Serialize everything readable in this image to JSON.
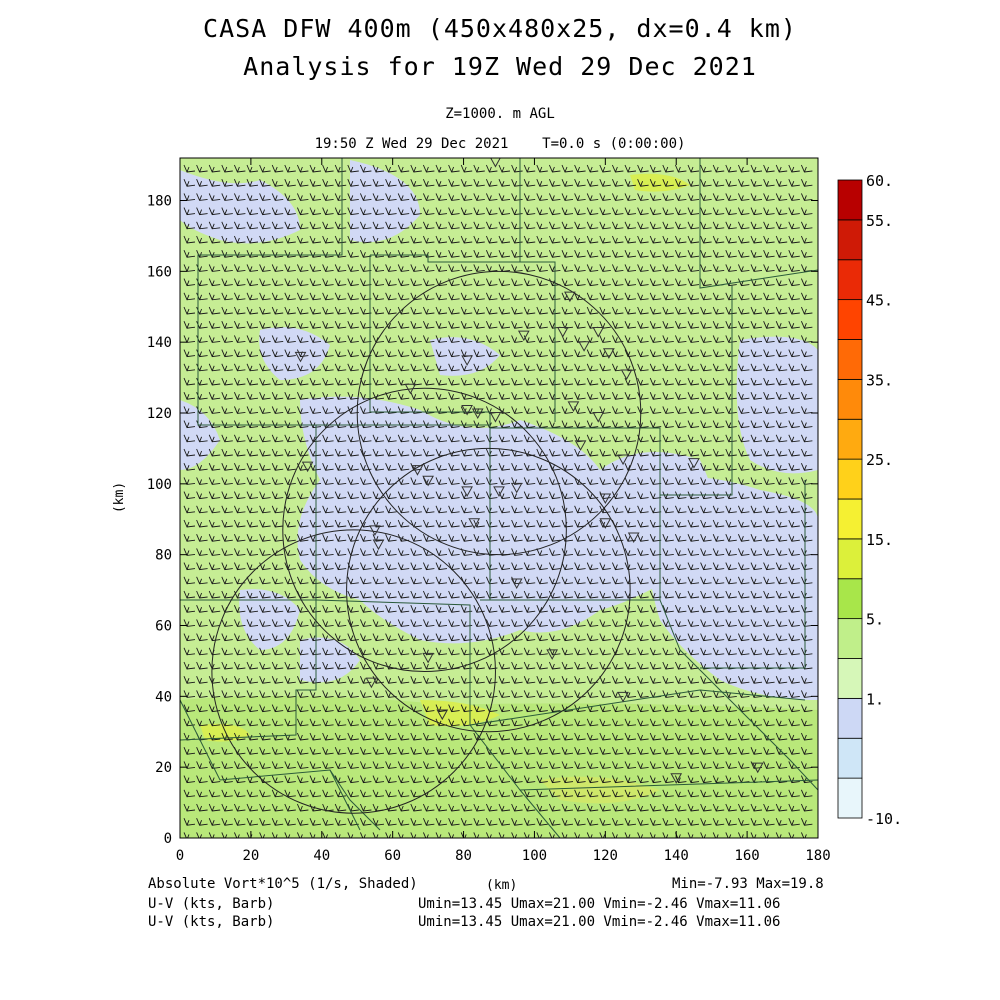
{
  "titles": {
    "line1": "CASA DFW 400m (450x480x25, dx=0.4 km)",
    "line2": "Analysis for 19Z Wed 29 Dec 2021",
    "level": "Z=1000. m AGL",
    "valid": "19:50 Z Wed 29 Dec 2021    T=0.0 s (0:00:00)"
  },
  "axes": {
    "x_ticks": [
      "0",
      "20",
      "40",
      "60",
      "80",
      "100",
      "120",
      "140",
      "160",
      "180"
    ],
    "y_ticks": [
      "0",
      "20",
      "40",
      "60",
      "80",
      "100",
      "120",
      "140",
      "160",
      "180"
    ],
    "x_label": "(km)",
    "y_label": "(km)",
    "x_range_km": [
      0,
      180
    ],
    "y_range_km": [
      0,
      192
    ]
  },
  "colorbar": {
    "labels": [
      "60.",
      "55.",
      "45.",
      "35.",
      "25.",
      "15.",
      "5.",
      "1.",
      "-10."
    ],
    "colors": [
      "#e8f6fb",
      "#cfe6f7",
      "#cdd8f5",
      "#d6f7b8",
      "#c0ef8a",
      "#a8e64a",
      "#dcf03a",
      "#f5f032",
      "#ffd11a",
      "#ffaa10",
      "#ff8a0a",
      "#ff6a06",
      "#ff4400",
      "#ea2a06",
      "#cf1a06",
      "#b80000"
    ]
  },
  "footer": {
    "left1": "Absolute Vort*10^5 (1/s, Shaded)",
    "left2": "U-V (kts, Barb)",
    "left3": "U-V (kts, Barb)",
    "center": "(km)",
    "minmax": "Min=-7.93 Max=19.8",
    "uv1": "Umin=13.45 Umax=21.00 Vmin=-2.46 Vmax=11.06",
    "uv2": "Umin=13.45 Umax=21.00 Vmin=-2.46 Vmax=11.06"
  },
  "map": {
    "radar_rings_km": [
      {
        "cx": 90,
        "cy": 120,
        "r": 40
      },
      {
        "cx": 69,
        "cy": 87,
        "r": 40
      },
      {
        "cx": 49,
        "cy": 47,
        "r": 40
      },
      {
        "cx": 87,
        "cy": 70,
        "r": 40
      }
    ],
    "station_markers_km": [
      [
        89,
        191
      ],
      [
        34,
        136
      ],
      [
        65,
        127
      ],
      [
        81,
        135
      ],
      [
        97,
        142
      ],
      [
        108,
        143
      ],
      [
        110,
        153
      ],
      [
        114,
        139
      ],
      [
        118,
        143
      ],
      [
        121,
        137
      ],
      [
        126,
        131
      ],
      [
        81,
        121
      ],
      [
        84,
        120
      ],
      [
        89,
        119
      ],
      [
        111,
        122
      ],
      [
        118,
        119
      ],
      [
        113,
        111
      ],
      [
        125,
        107
      ],
      [
        145,
        106
      ],
      [
        36,
        105
      ],
      [
        67,
        104
      ],
      [
        70,
        101
      ],
      [
        81,
        98
      ],
      [
        90,
        98
      ],
      [
        95,
        99
      ],
      [
        120,
        96
      ],
      [
        120,
        89
      ],
      [
        83,
        89
      ],
      [
        55,
        87
      ],
      [
        56,
        83
      ],
      [
        128,
        85
      ],
      [
        95,
        72
      ],
      [
        70,
        51
      ],
      [
        105,
        52
      ],
      [
        54,
        44
      ],
      [
        74,
        35
      ],
      [
        125,
        40
      ],
      [
        140,
        17
      ],
      [
        163,
        20
      ]
    ],
    "vort_level_max": 19.8,
    "vort_level_min": -7.93
  }
}
